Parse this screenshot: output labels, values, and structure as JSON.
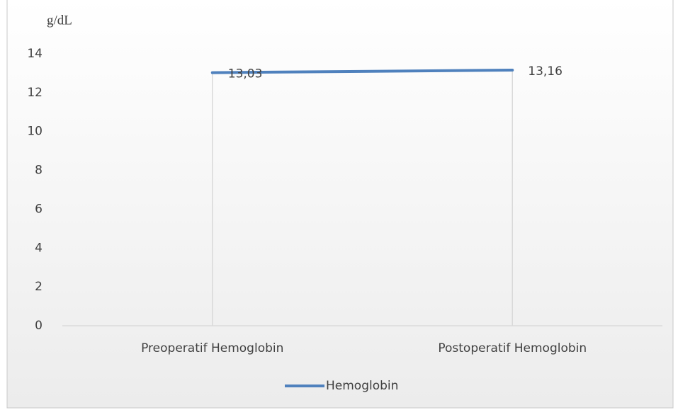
{
  "chart_data": {
    "type": "line",
    "y_axis_label": "g/dL",
    "categories": [
      "Preoperatif Hemoglobin",
      "Postoperatif Hemoglobin"
    ],
    "series": [
      {
        "name": "Hemoglobin",
        "color": "#4f81bd",
        "values": [
          13.03,
          13.16
        ],
        "value_labels": [
          "13,03",
          "13,16"
        ]
      }
    ],
    "ylim": [
      0,
      14
    ],
    "yticks": [
      0,
      2,
      4,
      6,
      8,
      10,
      12,
      14
    ],
    "grid": false,
    "drop_lines": true,
    "legend": "bottom"
  }
}
